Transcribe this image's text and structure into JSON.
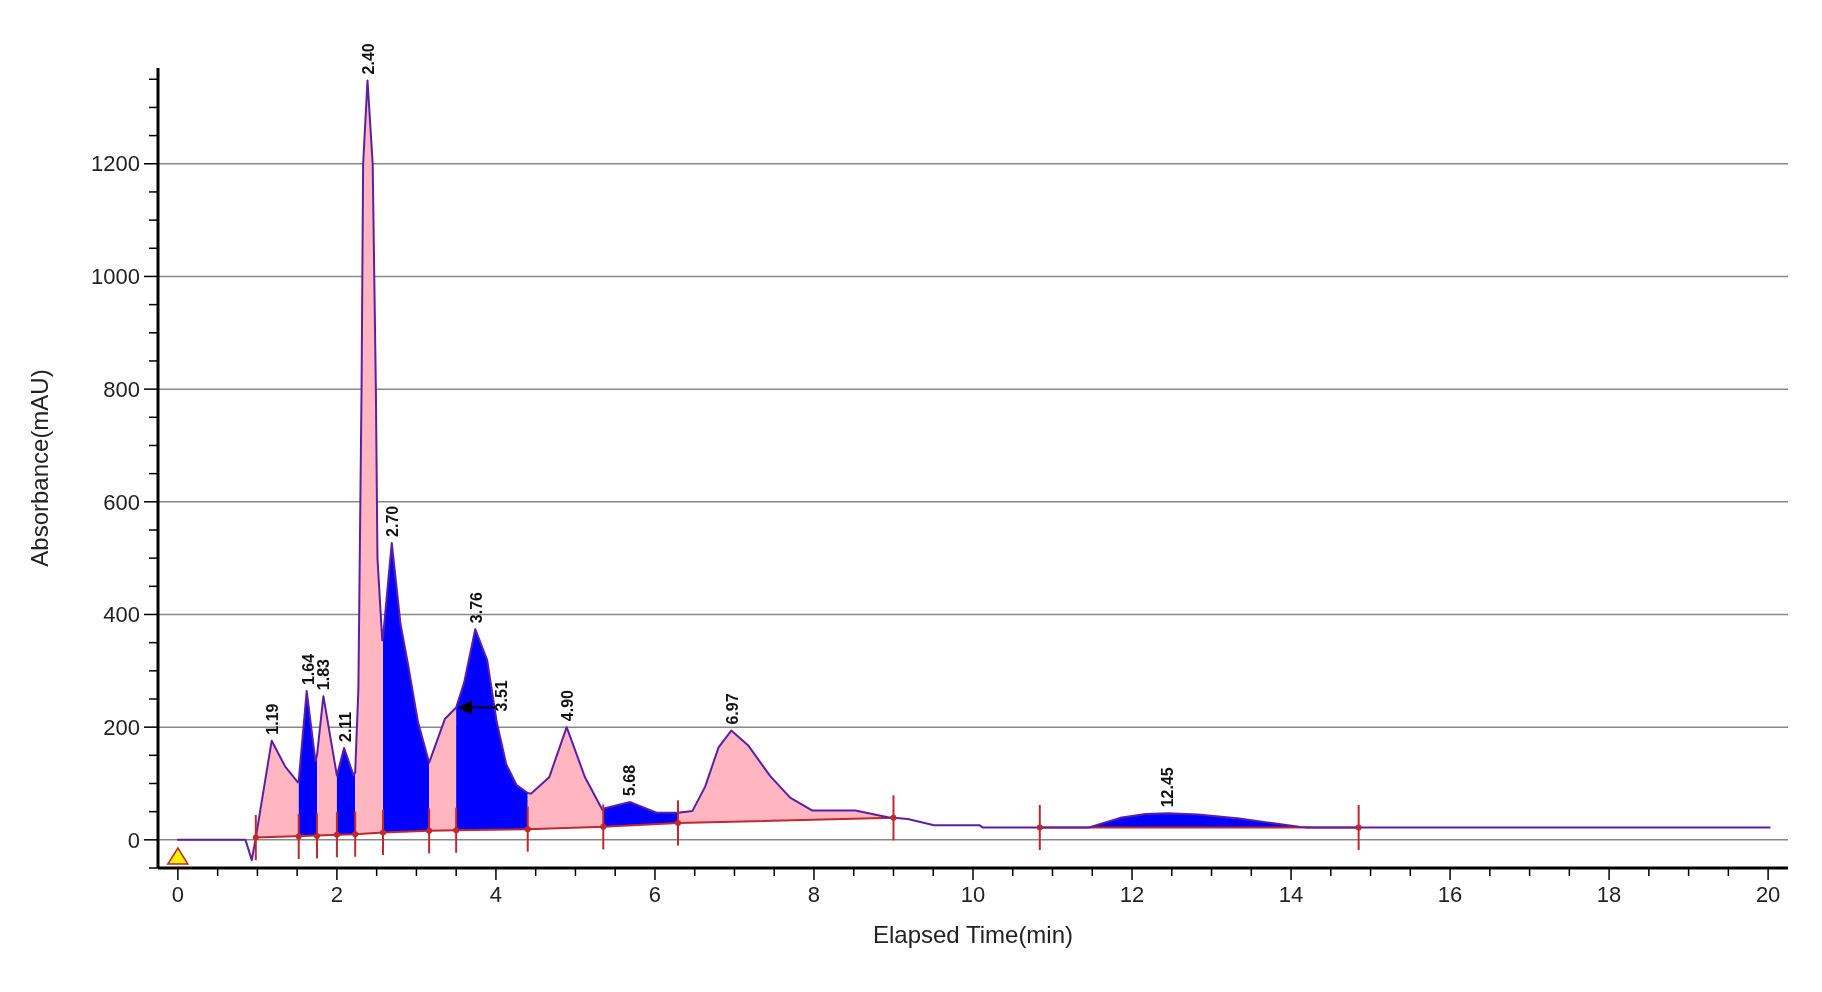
{
  "chart_data": {
    "type": "line",
    "xlabel": "Elapsed Time(min)",
    "ylabel": "Absorbance(mAU)",
    "xlim": [
      -0.25,
      20.25
    ],
    "ylim": [
      -50,
      1370
    ],
    "grid": "y",
    "xticks": [
      0,
      {
        "value": 0.5,
        "label": null
      },
      {
        "value": 1,
        "label": null
      },
      {
        "value": 1.5,
        "label": null
      },
      2,
      {
        "value": 2.5,
        "label": null
      },
      {
        "value": 3,
        "label": null
      },
      {
        "value": 3.5,
        "label": null
      },
      4,
      {
        "value": 4.5,
        "label": null
      },
      {
        "value": 5,
        "label": null
      },
      {
        "value": 5.5,
        "label": null
      },
      6,
      {
        "value": 6.5,
        "label": null
      },
      {
        "value": 7,
        "label": null
      },
      {
        "value": 7.5,
        "label": null
      },
      8,
      {
        "value": 8.5,
        "label": null
      },
      {
        "value": 9,
        "label": null
      },
      {
        "value": 9.5,
        "label": null
      },
      10,
      {
        "value": 10.5,
        "label": null
      },
      {
        "value": 11,
        "label": null
      },
      {
        "value": 11.5,
        "label": null
      },
      12,
      {
        "value": 12.5,
        "label": null
      },
      {
        "value": 13,
        "label": null
      },
      {
        "value": 13.5,
        "label": null
      },
      14,
      {
        "value": 14.5,
        "label": null
      },
      {
        "value": 15,
        "label": null
      },
      {
        "value": 15.5,
        "label": null
      },
      16,
      {
        "value": 16.5,
        "label": null
      },
      {
        "value": 17,
        "label": null
      },
      {
        "value": 17.5,
        "label": null
      },
      18,
      {
        "value": 18.5,
        "label": null
      },
      {
        "value": 19,
        "label": null
      },
      {
        "value": 19.5,
        "label": null
      },
      20
    ],
    "yticks": [
      {
        "value": -50,
        "label": null
      },
      0,
      {
        "value": 50,
        "label": null
      },
      {
        "value": 100,
        "label": null
      },
      {
        "value": 150,
        "label": null
      },
      200,
      {
        "value": 250,
        "label": null
      },
      {
        "value": 300,
        "label": null
      },
      {
        "value": 350,
        "label": null
      },
      400,
      {
        "value": 450,
        "label": null
      },
      {
        "value": 500,
        "label": null
      },
      {
        "value": 550,
        "label": null
      },
      600,
      {
        "value": 650,
        "label": null
      },
      {
        "value": 700,
        "label": null
      },
      {
        "value": 750,
        "label": null
      },
      800,
      {
        "value": 850,
        "label": null
      },
      {
        "value": 900,
        "label": null
      },
      {
        "value": 950,
        "label": null
      },
      1000,
      {
        "value": 1050,
        "label": null
      },
      {
        "value": 1100,
        "label": null
      },
      {
        "value": 1150,
        "label": null
      },
      1200,
      {
        "value": 1250,
        "label": null
      },
      {
        "value": 1300,
        "label": null
      },
      {
        "value": 1350,
        "label": null
      }
    ],
    "series": [
      {
        "type": "area",
        "color": "#ffb6c1",
        "x": [
          0.98,
          1.18,
          1.35,
          1.51,
          1.52
        ],
        "values": [
          4,
          176,
          130,
          102,
          105
        ]
      },
      {
        "type": "area",
        "color": "#0000ff",
        "x": [
          1.52,
          1.62,
          1.73,
          1.75
        ],
        "values": [
          105,
          264,
          140,
          150
        ]
      },
      {
        "type": "area",
        "color": "#ffb6c1",
        "x": [
          1.75,
          1.83,
          2.0
        ],
        "values": [
          150,
          255,
          114
        ]
      },
      {
        "type": "area",
        "color": "#0000ff",
        "x": [
          2.0,
          2.09,
          2.21,
          2.23
        ],
        "values": [
          114,
          163,
          114,
          120
        ]
      },
      {
        "type": "area",
        "color": "#ffb6c1",
        "x": [
          2.23,
          2.27,
          2.31,
          2.33,
          2.385,
          2.45,
          2.47,
          2.49,
          2.51,
          2.57,
          2.58
        ],
        "values": [
          120,
          267,
          800,
          1200,
          1348,
          1200,
          1000,
          800,
          500,
          354,
          360
        ]
      },
      {
        "type": "area",
        "color": "#0000ff",
        "x": [
          2.58,
          2.69,
          2.8,
          2.9,
          3.02,
          3.16
        ],
        "values": [
          360,
          527,
          383,
          307,
          209,
          137
        ]
      },
      {
        "type": "area",
        "color": "#ffb6c1",
        "x": [
          3.16,
          3.36,
          3.5
        ],
        "values": [
          137,
          215,
          235
        ]
      },
      {
        "type": "area",
        "color": "#0000ff",
        "x": [
          3.5,
          3.6,
          3.74,
          3.89,
          4.01,
          4.13,
          4.26,
          4.4
        ],
        "values": [
          235,
          279,
          374,
          319,
          209,
          134,
          97,
          83
        ]
      },
      {
        "type": "area",
        "color": "#ffb6c1",
        "x": [
          4.4,
          4.44,
          4.67,
          4.89,
          5.12,
          5.34,
          5.35
        ],
        "values": [
          83,
          82,
          111,
          200,
          111,
          53,
          54
        ]
      },
      {
        "type": "area",
        "color": "#0000ff",
        "x": [
          5.35,
          5.37,
          5.69,
          6.02,
          6.29
        ],
        "values": [
          54,
          56,
          67,
          48,
          48
        ]
      },
      {
        "type": "area",
        "color": "#ffb6c1",
        "x": [
          6.29,
          6.47,
          6.63,
          6.8,
          6.96,
          7.17,
          7.45,
          7.7,
          7.98,
          8.52,
          8.93,
          9.0
        ],
        "values": [
          48,
          51,
          94,
          164,
          194,
          168,
          113,
          75,
          52,
          52,
          40,
          39
        ]
      },
      {
        "type": "area",
        "color": "#0000ff",
        "x": [
          10.84,
          11.46,
          11.85,
          12.17,
          12.45,
          12.83,
          13.35,
          13.7,
          14.12,
          14.2,
          14.85
        ],
        "values": [
          22,
          22,
          39,
          46,
          47,
          45,
          38,
          31,
          23,
          22,
          22
        ]
      },
      {
        "color": "#c0282d",
        "x": [
          0.98,
          2.23,
          2.58,
          3.16,
          3.5,
          4.4,
          5.35,
          6.29,
          9.0,
          9.5,
          10.84,
          14.85
        ],
        "values": [
          4,
          10,
          13,
          16,
          17,
          19,
          23,
          30,
          39,
          null,
          22,
          22
        ]
      },
      {
        "color": "#5a1fa8",
        "x": [
          0,
          0.85,
          0.93,
          0.98,
          1.18,
          1.35,
          1.51,
          1.52,
          1.62,
          1.73,
          1.75,
          1.83,
          2.0,
          2.09,
          2.21,
          2.23,
          2.27,
          2.31,
          2.33,
          2.385,
          2.45,
          2.47,
          2.49,
          2.51,
          2.57,
          2.58,
          2.69,
          2.8,
          2.9,
          3.02,
          3.16,
          3.36,
          3.5,
          3.6,
          3.74,
          3.89,
          4.01,
          4.13,
          4.26,
          4.4,
          4.44,
          4.67,
          4.89,
          5.12,
          5.34,
          5.35,
          5.37,
          5.69,
          6.02,
          6.29,
          6.47,
          6.63,
          6.8,
          6.96,
          7.17,
          7.45,
          7.7,
          7.98,
          8.52,
          8.93,
          9.0,
          9.18,
          9.51,
          10.08,
          10.12,
          11.46,
          11.85,
          12.17,
          12.45,
          12.83,
          13.35,
          13.7,
          14.12,
          14.2,
          20.02
        ],
        "values": [
          0,
          0,
          -36,
          4,
          176,
          130,
          102,
          105,
          264,
          140,
          150,
          255,
          114,
          163,
          114,
          120,
          267,
          800,
          1200,
          1348,
          1200,
          1000,
          800,
          500,
          354,
          360,
          527,
          383,
          307,
          209,
          137,
          215,
          235,
          279,
          374,
          319,
          209,
          134,
          97,
          83,
          82,
          111,
          200,
          111,
          53,
          54,
          56,
          67,
          48,
          48,
          51,
          94,
          164,
          194,
          168,
          113,
          75,
          52,
          52,
          40,
          39,
          37,
          26,
          26,
          22,
          22,
          39,
          46,
          47,
          45,
          38,
          31,
          23,
          22,
          22
        ]
      },
      {
        "type": "scatter",
        "color": "#c0282d",
        "marker": "circle",
        "x": [
          0.98,
          1.52,
          1.75,
          2.0,
          2.23,
          2.58,
          3.16,
          3.5,
          4.4,
          5.35,
          6.29,
          9.0,
          10.84,
          14.85
        ],
        "values": [
          4,
          6,
          7,
          9,
          10,
          13,
          16,
          17,
          19,
          23,
          30,
          39,
          22,
          22
        ],
        "errors": [
          40,
          40,
          40,
          40,
          40,
          40,
          40,
          40,
          40,
          40,
          40,
          40,
          40,
          40
        ]
      }
    ],
    "annotations": [
      {
        "text": "1.19",
        "x": 1.19,
        "y": 176
      },
      {
        "text": "1.64",
        "x": 1.64,
        "y": 264
      },
      {
        "text": "1.83",
        "x": 1.83,
        "y": 255
      },
      {
        "text": "2.11",
        "x": 2.11,
        "y": 163
      },
      {
        "text": "2.40",
        "x": 2.4,
        "y": 1348
      },
      {
        "text": "2.70",
        "x": 2.7,
        "y": 527
      },
      {
        "text": "3.51",
        "x": 3.51,
        "y": 235
      },
      {
        "text": "3.76",
        "x": 3.76,
        "y": 374
      },
      {
        "text": "4.90",
        "x": 4.9,
        "y": 200
      },
      {
        "text": "5.68",
        "x": 5.68,
        "y": 67
      },
      {
        "text": "6.97",
        "x": 6.97,
        "y": 194
      },
      {
        "text": "12.45",
        "x": 12.45,
        "y": 47
      }
    ]
  }
}
